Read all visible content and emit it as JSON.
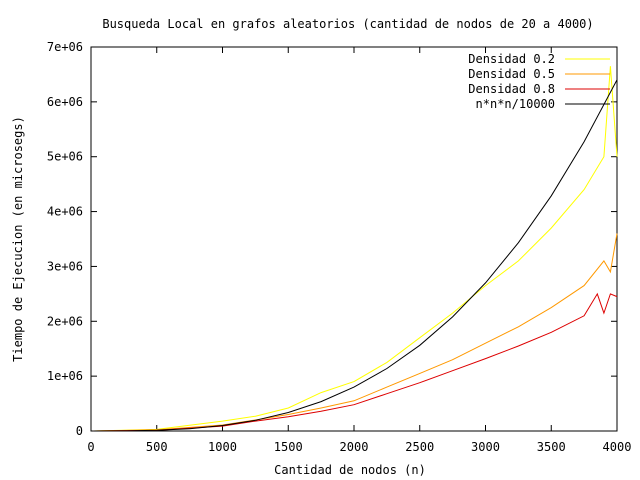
{
  "chart_data": {
    "type": "line",
    "title": "Busqueda Local en grafos aleatorios (cantidad de nodos de 20 a 4000)",
    "xlabel": "Cantidad de nodos (n)",
    "ylabel": "Tiempo de Ejecucion (en microsegs)",
    "xlim": [
      0,
      4000
    ],
    "ylim": [
      0,
      7000000
    ],
    "xticks": [
      0,
      500,
      1000,
      1500,
      2000,
      2500,
      3000,
      3500,
      4000
    ],
    "xtick_labels": [
      "0",
      "500",
      "1000",
      "1500",
      "2000",
      "2500",
      "3000",
      "3500",
      "4000"
    ],
    "yticks": [
      0,
      1000000,
      2000000,
      3000000,
      4000000,
      5000000,
      6000000,
      7000000
    ],
    "ytick_labels": [
      "0",
      "1e+06",
      "2e+06",
      "3e+06",
      "4e+06",
      "5e+06",
      "6e+06",
      "7e+06"
    ],
    "grid": false,
    "legend_position": "top-right",
    "series": [
      {
        "name": "Densidad 0.2",
        "color": "#ffff00",
        "x": [
          20,
          500,
          1000,
          1250,
          1500,
          1750,
          2000,
          2250,
          2500,
          2750,
          3000,
          3250,
          3500,
          3750,
          3900,
          3950,
          4000
        ],
        "y": [
          0,
          30000,
          180000,
          270000,
          420000,
          700000,
          900000,
          1250000,
          1700000,
          2150000,
          2650000,
          3100000,
          3700000,
          4400000,
          5000000,
          6650000,
          5000000
        ]
      },
      {
        "name": "Densidad 0.5",
        "color": "#ff9900",
        "x": [
          20,
          500,
          1000,
          1250,
          1500,
          1750,
          2000,
          2250,
          2500,
          2750,
          3000,
          3250,
          3500,
          3750,
          3900,
          3950,
          4000
        ],
        "y": [
          0,
          20000,
          110000,
          200000,
          300000,
          420000,
          550000,
          800000,
          1050000,
          1300000,
          1600000,
          1900000,
          2250000,
          2650000,
          3100000,
          2900000,
          3600000
        ]
      },
      {
        "name": "Densidad 0.8",
        "color": "#dd0000",
        "x": [
          20,
          500,
          1000,
          1250,
          1500,
          1750,
          2000,
          2250,
          2500,
          2750,
          3000,
          3250,
          3500,
          3750,
          3850,
          3900,
          3950,
          4000
        ],
        "y": [
          0,
          15000,
          90000,
          180000,
          260000,
          360000,
          480000,
          680000,
          880000,
          1100000,
          1320000,
          1550000,
          1800000,
          2100000,
          2500000,
          2150000,
          2500000,
          2450000
        ]
      },
      {
        "name": "n*n*n/10000",
        "color": "#000000",
        "x": [
          20,
          250,
          500,
          750,
          1000,
          1250,
          1500,
          1750,
          2000,
          2250,
          2500,
          2750,
          3000,
          3250,
          3500,
          3750,
          4000
        ],
        "y": [
          0.8,
          1562.5,
          12500,
          42187.5,
          100000,
          195312.5,
          337500,
          535937.5,
          800000,
          1139062.5,
          1562500,
          2079687.5,
          2700000,
          3432812.5,
          4287500,
          5273437.5,
          6400000
        ]
      }
    ]
  }
}
